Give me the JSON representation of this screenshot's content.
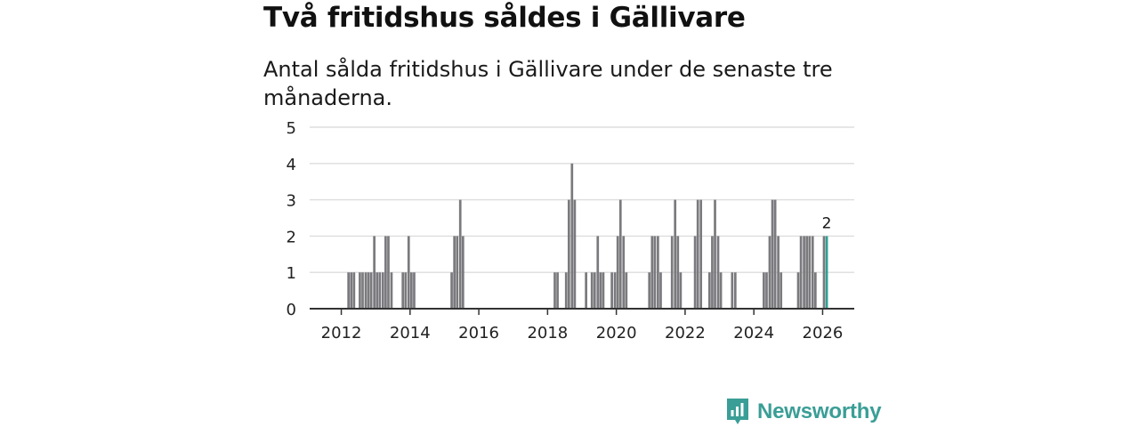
{
  "header": {
    "title": "Två fritidshus såldes i Gällivare",
    "subtitle": "Antal sålda fritidshus i Gällivare under de senaste tre månaderna."
  },
  "brand": {
    "name": "Newsworthy",
    "color": "#3a9e96",
    "icon": "newsworthy-logo-icon"
  },
  "colors": {
    "bar": "#7a7a7e",
    "highlight": "#2fa094",
    "grid": "#dddddd",
    "axis": "#333333"
  },
  "chart_data": {
    "type": "bar",
    "title": "Två fritidshus såldes i Gällivare",
    "xlabel": "",
    "ylabel": "",
    "ylim": [
      0,
      5
    ],
    "yticks": [
      0,
      1,
      2,
      3,
      4,
      5
    ],
    "xlim": [
      2011.08,
      2026.92
    ],
    "xticks": [
      2012,
      2014,
      2016,
      2018,
      2020,
      2022,
      2024,
      2026
    ],
    "grid": true,
    "legend": "none",
    "highlight_last": true,
    "last_value_label": "2",
    "x": [
      2012.21,
      2012.29,
      2012.37,
      2012.54,
      2012.62,
      2012.71,
      2012.79,
      2012.87,
      2012.96,
      2013.04,
      2013.12,
      2013.21,
      2013.29,
      2013.37,
      2013.46,
      2013.54,
      2013.79,
      2013.87,
      2013.96,
      2014.04,
      2014.12,
      2015.21,
      2015.29,
      2015.37,
      2015.46,
      2015.54,
      2015.62,
      2018.21,
      2018.29,
      2018.37,
      2018.54,
      2018.62,
      2018.71,
      2018.79,
      2018.87,
      2019.12,
      2019.29,
      2019.37,
      2019.46,
      2019.54,
      2019.62,
      2019.71,
      2019.87,
      2019.96,
      2020.04,
      2020.12,
      2020.21,
      2020.29,
      2020.37,
      2020.96,
      2021.04,
      2021.12,
      2021.21,
      2021.29,
      2021.37,
      2021.62,
      2021.71,
      2021.79,
      2021.87,
      2022.29,
      2022.37,
      2022.46,
      2022.54,
      2022.71,
      2022.79,
      2022.87,
      2022.96,
      2023.04,
      2023.37,
      2023.46,
      2023.54,
      2024.29,
      2024.37,
      2024.46,
      2024.54,
      2024.62,
      2024.71,
      2024.79,
      2025.29,
      2025.37,
      2025.46,
      2025.54,
      2025.62,
      2025.71,
      2025.79,
      2026.04,
      2026.12
    ],
    "values": [
      1,
      1,
      1,
      1,
      1,
      1,
      1,
      1,
      2,
      1,
      1,
      1,
      2,
      2,
      1,
      0,
      1,
      1,
      2,
      1,
      1,
      1,
      2,
      2,
      3,
      2,
      0,
      1,
      1,
      0,
      1,
      3,
      4,
      3,
      0,
      1,
      1,
      1,
      2,
      1,
      1,
      0,
      1,
      1,
      2,
      3,
      2,
      1,
      0,
      1,
      2,
      2,
      2,
      1,
      0,
      2,
      3,
      2,
      1,
      2,
      3,
      3,
      0,
      1,
      2,
      3,
      2,
      1,
      1,
      1,
      0,
      1,
      1,
      2,
      3,
      3,
      2,
      1,
      1,
      2,
      2,
      2,
      2,
      2,
      1,
      2,
      2
    ]
  }
}
